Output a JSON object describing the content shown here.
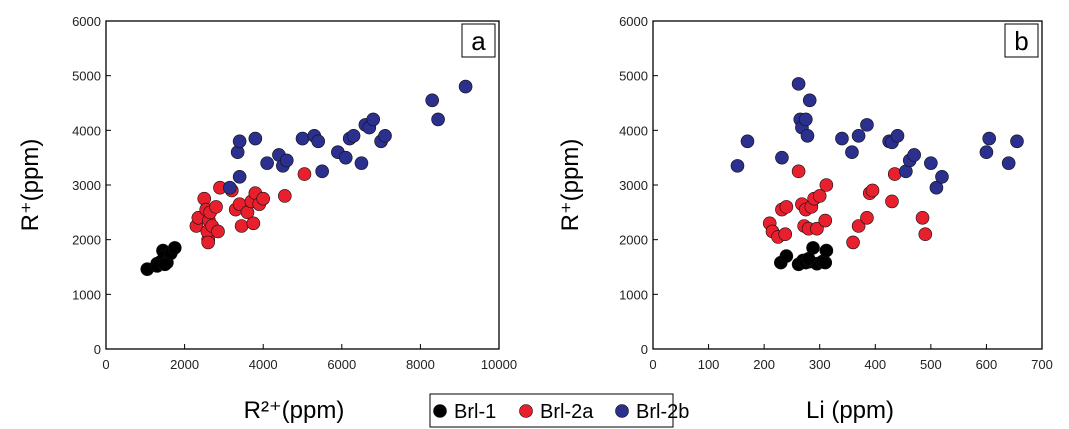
{
  "colors": {
    "Brl-1": "#000000",
    "Brl-2a": "#e8202e",
    "Brl-2b": "#2b2f8e"
  },
  "legend": {
    "items": [
      "Brl-1",
      "Brl-2a",
      "Brl-2b"
    ]
  },
  "chart_data": [
    {
      "type": "scatter",
      "panel_label": "a",
      "xlabel": "R²⁺(ppm)",
      "ylabel": "R⁺(ppm)",
      "xlim": [
        0,
        10000
      ],
      "ylim": [
        0,
        6000
      ],
      "xticks": [
        0,
        2000,
        4000,
        6000,
        8000,
        10000
      ],
      "yticks": [
        0,
        1000,
        2000,
        3000,
        4000,
        5000,
        6000
      ],
      "series": [
        {
          "name": "Brl-1",
          "points": [
            [
              1050,
              1460
            ],
            [
              1300,
              1560
            ],
            [
              1400,
              1600
            ],
            [
              1450,
              1800
            ],
            [
              1500,
              1700
            ],
            [
              1550,
              1580
            ],
            [
              1650,
              1750
            ],
            [
              1750,
              1850
            ],
            [
              1300,
              1520
            ],
            [
              1500,
              1550
            ]
          ]
        },
        {
          "name": "Brl-2a",
          "points": [
            [
              2300,
              2250
            ],
            [
              2350,
              2400
            ],
            [
              2500,
              2750
            ],
            [
              2550,
              2550
            ],
            [
              2600,
              2000
            ],
            [
              2620,
              2350
            ],
            [
              2580,
              2150
            ],
            [
              2650,
              2500
            ],
            [
              2700,
              2250
            ],
            [
              2800,
              2600
            ],
            [
              2850,
              2150
            ],
            [
              2900,
              2950
            ],
            [
              3200,
              2900
            ],
            [
              3300,
              2550
            ],
            [
              3400,
              2650
            ],
            [
              3450,
              2250
            ],
            [
              3600,
              2500
            ],
            [
              3700,
              2700
            ],
            [
              3750,
              2300
            ],
            [
              3800,
              2850
            ],
            [
              3900,
              2650
            ],
            [
              4000,
              2750
            ],
            [
              4550,
              2800
            ],
            [
              5050,
              3200
            ],
            [
              2600,
              1950
            ]
          ]
        },
        {
          "name": "Brl-2b",
          "points": [
            [
              3150,
              2950
            ],
            [
              3350,
              3600
            ],
            [
              3400,
              3800
            ],
            [
              3400,
              3150
            ],
            [
              3800,
              3850
            ],
            [
              4100,
              3400
            ],
            [
              4400,
              3550
            ],
            [
              4500,
              3350
            ],
            [
              4600,
              3450
            ],
            [
              5000,
              3850
            ],
            [
              5300,
              3900
            ],
            [
              5400,
              3800
            ],
            [
              5500,
              3250
            ],
            [
              5900,
              3600
            ],
            [
              6100,
              3500
            ],
            [
              6200,
              3850
            ],
            [
              6300,
              3900
            ],
            [
              6500,
              3400
            ],
            [
              6600,
              4100
            ],
            [
              6700,
              4050
            ],
            [
              6800,
              4200
            ],
            [
              7000,
              3800
            ],
            [
              7100,
              3900
            ],
            [
              8300,
              4550
            ],
            [
              8450,
              4200
            ],
            [
              9150,
              4800
            ]
          ]
        }
      ]
    },
    {
      "type": "scatter",
      "panel_label": "b",
      "xlabel": "Li (ppm)",
      "ylabel": "R⁺(ppm)",
      "xlim": [
        0,
        700
      ],
      "ylim": [
        0,
        6000
      ],
      "xticks": [
        0,
        100,
        200,
        300,
        400,
        500,
        600,
        700
      ],
      "yticks": [
        0,
        1000,
        2000,
        3000,
        4000,
        5000,
        6000
      ],
      "series": [
        {
          "name": "Brl-1",
          "points": [
            [
              230,
              1580
            ],
            [
              240,
              1700
            ],
            [
              262,
              1550
            ],
            [
              270,
              1620
            ],
            [
              275,
              1580
            ],
            [
              282,
              1600
            ],
            [
              288,
              1850
            ],
            [
              295,
              1560
            ],
            [
              305,
              1600
            ],
            [
              310,
              1580
            ],
            [
              312,
              1800
            ],
            [
              280,
              1650
            ]
          ]
        },
        {
          "name": "Brl-2a",
          "points": [
            [
              210,
              2300
            ],
            [
              215,
              2150
            ],
            [
              225,
              2050
            ],
            [
              232,
              2550
            ],
            [
              238,
              2100
            ],
            [
              240,
              2600
            ],
            [
              262,
              3250
            ],
            [
              268,
              2650
            ],
            [
              272,
              2250
            ],
            [
              275,
              2550
            ],
            [
              280,
              2200
            ],
            [
              285,
              2600
            ],
            [
              290,
              2750
            ],
            [
              295,
              2200
            ],
            [
              300,
              2800
            ],
            [
              310,
              2350
            ],
            [
              312,
              3000
            ],
            [
              360,
              1950
            ],
            [
              370,
              2250
            ],
            [
              385,
              2400
            ],
            [
              390,
              2850
            ],
            [
              395,
              2900
            ],
            [
              430,
              2700
            ],
            [
              435,
              3200
            ],
            [
              485,
              2400
            ],
            [
              490,
              2100
            ]
          ]
        },
        {
          "name": "Brl-2b",
          "points": [
            [
              152,
              3350
            ],
            [
              170,
              3800
            ],
            [
              232,
              3500
            ],
            [
              262,
              4850
            ],
            [
              265,
              4200
            ],
            [
              268,
              4050
            ],
            [
              278,
              3900
            ],
            [
              282,
              4550
            ],
            [
              340,
              3850
            ],
            [
              358,
              3600
            ],
            [
              370,
              3900
            ],
            [
              385,
              4100
            ],
            [
              425,
              3800
            ],
            [
              430,
              3780
            ],
            [
              440,
              3900
            ],
            [
              455,
              3250
            ],
            [
              462,
              3450
            ],
            [
              470,
              3550
            ],
            [
              500,
              3400
            ],
            [
              510,
              2950
            ],
            [
              520,
              3150
            ],
            [
              600,
              3600
            ],
            [
              605,
              3850
            ],
            [
              640,
              3400
            ],
            [
              655,
              3800
            ],
            [
              275,
              4200
            ]
          ]
        }
      ]
    }
  ]
}
